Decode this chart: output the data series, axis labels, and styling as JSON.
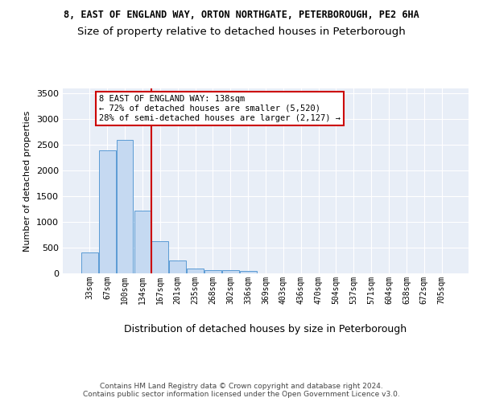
{
  "title1": "8, EAST OF ENGLAND WAY, ORTON NORTHGATE, PETERBOROUGH, PE2 6HA",
  "title2": "Size of property relative to detached houses in Peterborough",
  "xlabel": "Distribution of detached houses by size in Peterborough",
  "ylabel": "Number of detached properties",
  "categories": [
    "33sqm",
    "67sqm",
    "100sqm",
    "134sqm",
    "167sqm",
    "201sqm",
    "235sqm",
    "268sqm",
    "302sqm",
    "336sqm",
    "369sqm",
    "403sqm",
    "436sqm",
    "470sqm",
    "504sqm",
    "537sqm",
    "571sqm",
    "604sqm",
    "638sqm",
    "672sqm",
    "705sqm"
  ],
  "values": [
    400,
    2400,
    2600,
    1220,
    620,
    250,
    100,
    60,
    55,
    40,
    0,
    0,
    0,
    0,
    0,
    0,
    0,
    0,
    0,
    0,
    0
  ],
  "bar_color": "#c5d9f1",
  "bar_edge_color": "#5b9bd5",
  "vline_x": 3.5,
  "vline_color": "#cc0000",
  "annotation_text": "8 EAST OF ENGLAND WAY: 138sqm\n← 72% of detached houses are smaller (5,520)\n28% of semi-detached houses are larger (2,127) →",
  "annotation_box_color": "white",
  "annotation_box_edge": "#cc0000",
  "ylim": [
    0,
    3600
  ],
  "yticks": [
    0,
    500,
    1000,
    1500,
    2000,
    2500,
    3000,
    3500
  ],
  "ax_bg": "#e8eef7",
  "footer_text": "Contains HM Land Registry data © Crown copyright and database right 2024.\nContains public sector information licensed under the Open Government Licence v3.0.",
  "title1_fontsize": 8.5,
  "title2_fontsize": 9.5,
  "ylabel_fontsize": 8,
  "xlabel_fontsize": 9,
  "tick_fontsize": 7,
  "ytick_fontsize": 8,
  "footer_fontsize": 6.5,
  "annot_fontsize": 7.5
}
